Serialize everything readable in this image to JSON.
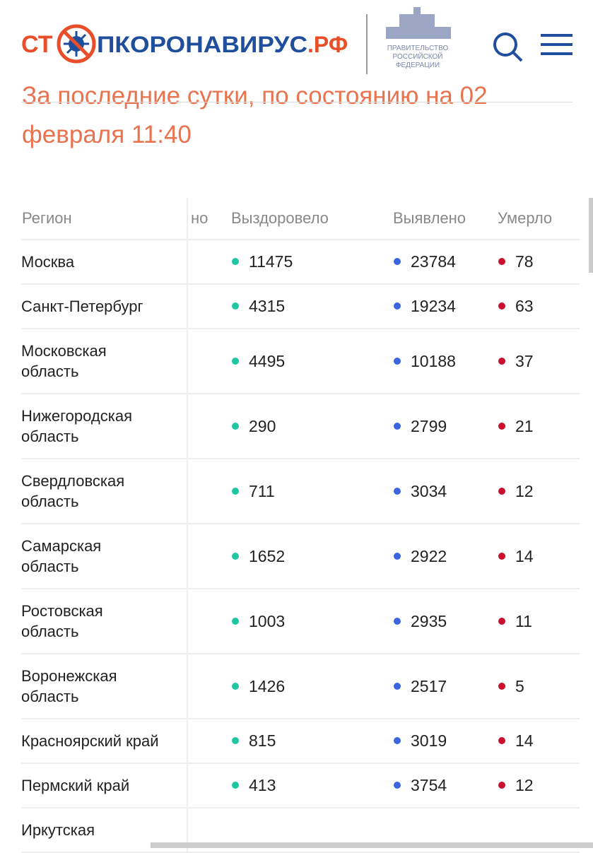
{
  "header": {
    "logo": [
      "СТ",
      "ПКОРОНАВИРУС",
      ".РФ"
    ],
    "gov": [
      "ПРАВИТЕЛЬСТВО",
      "РОССИЙСКОЙ",
      "ФЕДЕРАЦИИ"
    ]
  },
  "subtitle": [
    "За последние сутки, по состоянию на 02",
    "февраля 11:40"
  ],
  "table": {
    "columns": [
      "Регион",
      "но",
      "Выздоровело",
      "Выявлено",
      "Умерло"
    ],
    "rows": [
      [
        "Москва",
        11475,
        23784,
        78
      ],
      [
        "Санкт-Петербург",
        4315,
        19234,
        63
      ],
      [
        "Московская область",
        4495,
        10188,
        37
      ],
      [
        "Нижегородская область",
        290,
        2799,
        21
      ],
      [
        "Свердловская область",
        711,
        3034,
        12
      ],
      [
        "Самарская область",
        1652,
        2922,
        14
      ],
      [
        "Ростовская область",
        1003,
        2935,
        11
      ],
      [
        "Воронежская область",
        1426,
        2517,
        5
      ],
      [
        "Красноярский край",
        815,
        3019,
        14
      ],
      [
        "Пермский край",
        413,
        3754,
        12
      ],
      [
        "Иркутская"
      ]
    ]
  }
}
